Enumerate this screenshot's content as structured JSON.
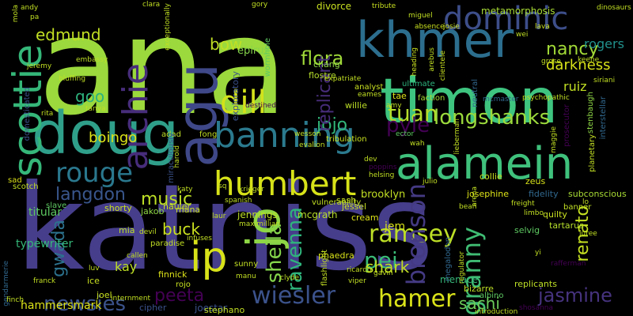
{
  "cloud": {
    "background": "#000000",
    "words": [
      {
        "text": "ana",
        "color": "#9bd93c",
        "rotated": false
      },
      {
        "text": "katniss",
        "color": "#463e8b",
        "rotated": false
      },
      {
        "text": "timon",
        "color": "#3ec47f",
        "rotated": false
      },
      {
        "text": "khmer",
        "color": "#2c6e8e",
        "rotated": false
      },
      {
        "text": "doug",
        "color": "#2f9f8a",
        "rotated": false
      },
      {
        "text": "alamein",
        "color": "#3fc17c",
        "rotated": false
      },
      {
        "text": "agu",
        "color": "#3f4888",
        "rotated": true
      },
      {
        "text": "dominic",
        "color": "#3d4e8a",
        "rotated": false
      },
      {
        "text": "banning",
        "color": "#2b7a8e",
        "rotated": false
      },
      {
        "text": "humbert",
        "color": "#d7e219",
        "rotated": false
      },
      {
        "text": "scottie",
        "color": "#35b779",
        "rotated": true
      },
      {
        "text": "archie",
        "color": "#472d7b",
        "rotated": true
      },
      {
        "text": "dill",
        "color": "#d3e21b",
        "rotated": false
      },
      {
        "text": "rouge",
        "color": "#2a788e",
        "rotated": false
      },
      {
        "text": "tuan",
        "color": "#b5de2b",
        "rotated": false
      },
      {
        "text": "longshanks",
        "color": "#9bd93c",
        "rotated": false
      },
      {
        "text": "nancy",
        "color": "#a2da37",
        "rotated": false
      },
      {
        "text": "darkness",
        "color": "#d8e219",
        "rotated": false
      },
      {
        "text": "flora",
        "color": "#a0da39",
        "rotated": false
      },
      {
        "text": "edmund",
        "color": "#c2df23",
        "rotated": false
      },
      {
        "text": "bow",
        "color": "#c0df25",
        "rotated": false
      },
      {
        "text": "rogers",
        "color": "#21918c",
        "rotated": false
      },
      {
        "text": "ruiz",
        "color": "#c2df23",
        "rotated": false
      },
      {
        "text": "goo",
        "color": "#2db27d",
        "rotated": false
      },
      {
        "text": "jojo",
        "color": "#32b67a",
        "rotated": false
      },
      {
        "text": "pyle",
        "color": "#440154",
        "rotated": false
      },
      {
        "text": "jo",
        "color": "#8ed645",
        "rotated": true
      },
      {
        "text": "ip",
        "color": "#d8e219",
        "rotated": false
      },
      {
        "text": "langdon",
        "color": "#39568c",
        "rotated": false
      },
      {
        "text": "music",
        "color": "#bddf26",
        "rotated": false
      },
      {
        "text": "sheila",
        "color": "#84d44b",
        "rotated": true
      },
      {
        "text": "ravenna",
        "color": "#2fb47c",
        "rotated": true
      },
      {
        "text": "ramsey",
        "color": "#bddf26",
        "rotated": false
      },
      {
        "text": "pei",
        "color": "#3aba76",
        "rotated": false
      },
      {
        "text": "bronson",
        "color": "#443a83",
        "rotated": true
      },
      {
        "text": "granny",
        "color": "#3fbc73",
        "rotated": true
      },
      {
        "text": "renato",
        "color": "#c5e021",
        "rotated": true
      },
      {
        "text": "gwada",
        "color": "#2c728e",
        "rotated": true
      },
      {
        "text": "buck",
        "color": "#cae11f",
        "rotated": false
      },
      {
        "text": "shark",
        "color": "#c2df23",
        "rotated": false
      },
      {
        "text": "peeta",
        "color": "#440154",
        "rotated": false
      },
      {
        "text": "newsies",
        "color": "#3b528b",
        "rotated": false
      },
      {
        "text": "wiesler",
        "color": "#3b528b",
        "rotated": false
      },
      {
        "text": "hamer",
        "color": "#dae319",
        "rotated": false
      },
      {
        "text": "sachi",
        "color": "#6ccd5a",
        "rotated": false
      },
      {
        "text": "jasmine",
        "color": "#46337e",
        "rotated": false
      },
      {
        "text": "boingo",
        "color": "#dde318",
        "rotated": false
      },
      {
        "text": "kay",
        "color": "#bddf26",
        "rotated": false
      },
      {
        "text": "replicant",
        "color": "#472c7a",
        "rotated": true
      },
      {
        "text": "brooklyn",
        "color": "#c2df23",
        "rotated": false
      },
      {
        "text": "jem",
        "color": "#d8e219",
        "rotated": false
      },
      {
        "text": "typewriter",
        "color": "#35b779",
        "rotated": false
      },
      {
        "text": "titular",
        "color": "#5ec962",
        "rotated": false
      },
      {
        "text": "hammersmark",
        "color": "#dde318",
        "rotated": false
      },
      {
        "text": "metamorphosis",
        "color": "#a8db34",
        "rotated": false
      },
      {
        "text": "epirus",
        "color": "#84d44b",
        "rotated": false
      },
      {
        "text": "divorce",
        "color": "#c8e020",
        "rotated": false
      },
      {
        "text": "jennings",
        "color": "#bddf26",
        "rotated": false
      },
      {
        "text": "mcgrath",
        "color": "#b8de29",
        "rotated": false
      },
      {
        "text": "joestar",
        "color": "#3b528b",
        "rotated": false
      },
      {
        "text": "stephano",
        "color": "#c2df23",
        "rotated": false
      },
      {
        "text": "cipher",
        "color": "#3b528b",
        "rotated": false
      },
      {
        "text": "menace",
        "color": "#35b779",
        "rotated": false
      },
      {
        "text": "bizarre",
        "color": "#bddf26",
        "rotated": false
      },
      {
        "text": "replicants",
        "color": "#bddf26",
        "rotated": false
      },
      {
        "text": "josephine",
        "color": "#dde318",
        "rotated": false
      },
      {
        "text": "fidelity",
        "color": "#31688e",
        "rotated": false
      },
      {
        "text": "subconscious",
        "color": "#a8db34",
        "rotated": false
      },
      {
        "text": "finnick",
        "color": "#dde318",
        "rotated": false
      },
      {
        "text": "collie",
        "color": "#c8e020",
        "rotated": false
      },
      {
        "text": "zeus",
        "color": "#d8e219",
        "rotated": false
      },
      {
        "text": "chang",
        "color": "#8ed645",
        "rotated": false
      },
      {
        "text": "flostre",
        "color": "#b5de2b",
        "rotated": false
      },
      {
        "text": "sash",
        "color": "#c2df23",
        "rotated": false
      },
      {
        "text": "hauler",
        "color": "#c8e020",
        "rotated": false
      },
      {
        "text": "shorty",
        "color": "#cae11f",
        "rotated": false
      },
      {
        "text": "jakob",
        "color": "#8ed645",
        "rotated": false
      },
      {
        "text": "mana",
        "color": "#c8e020",
        "rotated": false
      },
      {
        "text": "adad",
        "color": "#bddf26",
        "rotated": false
      },
      {
        "text": "fong",
        "color": "#c2df23",
        "rotated": false
      },
      {
        "text": "tae",
        "color": "#dde318",
        "rotated": false
      },
      {
        "text": "willie",
        "color": "#bddf26",
        "rotated": false
      },
      {
        "text": "faction",
        "color": "#a8db34",
        "rotated": false
      },
      {
        "text": "jessel",
        "color": "#c8e020",
        "rotated": false
      },
      {
        "text": "cream",
        "color": "#dde318",
        "rotated": false
      },
      {
        "text": "slave",
        "color": "#5ec962",
        "rotated": false
      },
      {
        "text": "scotch",
        "color": "#c2df23",
        "rotated": false
      },
      {
        "text": "sad",
        "color": "#dde318",
        "rotated": false
      },
      {
        "text": "mia",
        "color": "#bddf26",
        "rotated": false
      },
      {
        "text": "paradise",
        "color": "#c2df23",
        "rotated": false
      },
      {
        "text": "quilty",
        "color": "#c8e020",
        "rotated": false
      },
      {
        "text": "selvig",
        "color": "#5ec962",
        "rotated": false
      },
      {
        "text": "tartarus",
        "color": "#b5de2b",
        "rotated": false
      },
      {
        "text": "banner",
        "color": "#c2df23",
        "rotated": false
      },
      {
        "text": "sunny",
        "color": "#c2df23",
        "rotated": false
      },
      {
        "text": "phaedra",
        "color": "#d8e219",
        "rotated": false
      },
      {
        "text": "ice",
        "color": "#c8e020",
        "rotated": false
      },
      {
        "text": "joel",
        "color": "#c8e020",
        "rotated": false
      },
      {
        "text": "rojo",
        "color": "#c8e020",
        "rotated": false
      },
      {
        "text": "albino",
        "color": "#5ec962",
        "rotated": false
      },
      {
        "text": "exploratory",
        "color": "#3b528b",
        "rotated": true
      },
      {
        "text": "domesticated",
        "color": "#3b528b",
        "rotated": true
      },
      {
        "text": "miraculously",
        "color": "#3b528b",
        "rotated": true
      },
      {
        "text": "megalodon",
        "color": "#31688e",
        "rotated": true
      },
      {
        "text": "stenbaugh",
        "color": "#8ed645",
        "rotated": true
      },
      {
        "text": "wormhole",
        "color": "#5ec962",
        "rotated": true
      },
      {
        "text": "interstellar",
        "color": "#31688e",
        "rotated": true
      },
      {
        "text": "planetary",
        "color": "#c2df23",
        "rotated": true
      },
      {
        "text": "neutral",
        "color": "#31688e",
        "rotated": true
      },
      {
        "text": "prosecutor",
        "color": "#440154",
        "rotated": true
      },
      {
        "text": "flashlight",
        "color": "#c2df23",
        "rotated": true
      },
      {
        "text": "tribulation",
        "color": "#c8e020",
        "rotated": false
      },
      {
        "text": "ultimate",
        "color": "#2db27d",
        "rotated": false
      },
      {
        "text": "analyst",
        "color": "#c8e020",
        "rotated": false
      },
      {
        "text": "vulnerability",
        "color": "#c2df23",
        "rotated": false
      },
      {
        "text": "maximillian",
        "color": "#c2df23",
        "rotated": false
      },
      {
        "text": "embassy",
        "color": "#bddf26",
        "rotated": false
      },
      {
        "text": "bluffing",
        "color": "#c2df23",
        "rotated": false
      },
      {
        "text": "gendarmerie",
        "color": "#31688e",
        "rotated": true
      },
      {
        "text": "introduction",
        "color": "#c2df23",
        "rotated": false
      },
      {
        "text": "shosanna",
        "color": "#440154",
        "rotated": false
      },
      {
        "text": "rafferman",
        "color": "#440154",
        "rotated": false
      },
      {
        "text": "psychopathic",
        "color": "#c2df23",
        "rotated": false
      },
      {
        "text": "mcmaster",
        "color": "#31688e",
        "rotated": false
      },
      {
        "text": "clara",
        "color": "#c2df23",
        "rotated": false
      },
      {
        "text": "gory",
        "color": "#c2df23",
        "rotated": false
      },
      {
        "text": "tribute",
        "color": "#c8e020",
        "rotated": false
      },
      {
        "text": "miguel",
        "color": "#c2df23",
        "rotated": false
      },
      {
        "text": "absence",
        "color": "#c8e020",
        "rotated": false
      },
      {
        "text": "josie",
        "color": "#c8e020",
        "rotated": false
      },
      {
        "text": "arebus",
        "color": "#c2df23",
        "rotated": true
      },
      {
        "text": "clientele",
        "color": "#c8e020",
        "rotated": true
      },
      {
        "text": "heading",
        "color": "#c8e020",
        "rotated": true
      },
      {
        "text": "keene",
        "color": "#c2df23",
        "rotated": false
      },
      {
        "text": "grose",
        "color": "#c2df23",
        "rotated": false
      },
      {
        "text": "siriani",
        "color": "#c2df23",
        "rotated": false
      },
      {
        "text": "wei",
        "color": "#c2df23",
        "rotated": false
      },
      {
        "text": "lava",
        "color": "#c8e020",
        "rotated": false
      },
      {
        "text": "mola",
        "color": "#c2df23",
        "rotated": true
      },
      {
        "text": "jeremy",
        "color": "#c2df23",
        "rotated": false
      },
      {
        "text": "andy",
        "color": "#c2df23",
        "rotated": false
      },
      {
        "text": "eames",
        "color": "#c2df23",
        "rotated": false
      },
      {
        "text": "amy",
        "color": "#c2df23",
        "rotated": false
      },
      {
        "text": "destined",
        "color": "#440154",
        "rotated": false
      },
      {
        "text": "wesson",
        "color": "#c2df23",
        "rotated": false
      },
      {
        "text": "evalion",
        "color": "#c2df23",
        "rotated": false
      },
      {
        "text": "ector",
        "color": "#5ec962",
        "rotated": false
      },
      {
        "text": "wah",
        "color": "#c2df23",
        "rotated": false
      },
      {
        "text": "poppins",
        "color": "#440154",
        "rotated": false
      },
      {
        "text": "helsing",
        "color": "#c2df23",
        "rotated": false
      },
      {
        "text": "julio",
        "color": "#c2df23",
        "rotated": false
      },
      {
        "text": "krieger",
        "color": "#c2df23",
        "rotated": false
      },
      {
        "text": "katy",
        "color": "#c2df23",
        "rotated": false
      },
      {
        "text": "spanish",
        "color": "#c2df23",
        "rotated": false
      },
      {
        "text": "laur",
        "color": "#c2df23",
        "rotated": false
      },
      {
        "text": "devil",
        "color": "#c2df23",
        "rotated": false
      },
      {
        "text": "infuses",
        "color": "#c2df23",
        "rotated": false
      },
      {
        "text": "callen",
        "color": "#c2df23",
        "rotated": false
      },
      {
        "text": "franck",
        "color": "#c2df23",
        "rotated": false
      },
      {
        "text": "clyde",
        "color": "#c2df23",
        "rotated": false
      },
      {
        "text": "viper",
        "color": "#c2df23",
        "rotated": false
      },
      {
        "text": "ricardo",
        "color": "#c2df23",
        "rotated": false
      },
      {
        "text": "gavin",
        "color": "#c2df23",
        "rotated": false
      },
      {
        "text": "manu",
        "color": "#c2df23",
        "rotated": false
      },
      {
        "text": "internment",
        "color": "#c2df23",
        "rotated": false
      },
      {
        "text": "finch",
        "color": "#c2df23",
        "rotated": false
      },
      {
        "text": "yi",
        "color": "#c2df23",
        "rotated": false
      },
      {
        "text": "luv",
        "color": "#c2df23",
        "rotated": false
      },
      {
        "text": "lo",
        "color": "#c2df23",
        "rotated": false
      },
      {
        "text": "freight",
        "color": "#c2df23",
        "rotated": false
      },
      {
        "text": "limbo",
        "color": "#c2df23",
        "rotated": false
      },
      {
        "text": "luree",
        "color": "#c2df23",
        "rotated": false
      },
      {
        "text": "bean",
        "color": "#c2df23",
        "rotated": false
      },
      {
        "text": "regulator",
        "color": "#c2df23",
        "rotated": true
      },
      {
        "text": "arena",
        "color": "#c2df23",
        "rotated": true
      },
      {
        "text": "lieberman",
        "color": "#c2df23",
        "rotated": true
      },
      {
        "text": "harold",
        "color": "#c2df23",
        "rotated": true
      },
      {
        "text": "pa",
        "color": "#c2df23",
        "rotated": false
      },
      {
        "text": "exceptionally",
        "color": "#c2df23",
        "rotated": true
      },
      {
        "text": "expatriate",
        "color": "#c2df23",
        "rotated": false
      },
      {
        "text": "maggie",
        "color": "#c2df23",
        "rotated": true
      },
      {
        "text": "dinosaurs",
        "color": "#c2df23",
        "rotated": false
      },
      {
        "text": "sq",
        "color": "#c2df23",
        "rotated": false
      },
      {
        "text": "tanya",
        "color": "#c2df23",
        "rotated": false
      },
      {
        "text": "rita",
        "color": "#c2df23",
        "rotated": false
      },
      {
        "text": "dev",
        "color": "#c2df23",
        "rotated": false
      }
    ]
  }
}
